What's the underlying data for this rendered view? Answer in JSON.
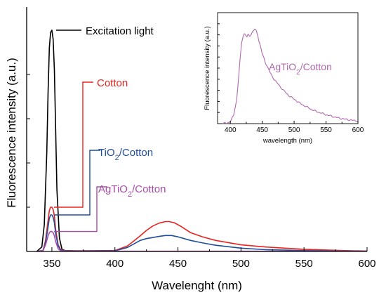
{
  "chart_data": [
    {
      "type": "line",
      "xlabel": "Wavelenght (nm)",
      "ylabel": "Fluorescence intensity (a.u.)",
      "xlim": [
        330,
        600
      ],
      "ylim": [
        0,
        1.0
      ],
      "xticks": [
        350,
        400,
        450,
        500,
        550,
        600
      ],
      "x_tick_labels": [
        "350",
        "400",
        "450",
        "500",
        "550",
        "600"
      ],
      "yticks": [
        0.2,
        0.4,
        0.6,
        0.8
      ],
      "y_tick_labels_visible": false,
      "series": [
        {
          "name": "Excitation light",
          "color": "#000000",
          "x": [
            338,
            342,
            344,
            346,
            347,
            348,
            349,
            350,
            351,
            352,
            353,
            354,
            356,
            358,
            362
          ],
          "y": [
            0.0,
            0.02,
            0.12,
            0.45,
            0.72,
            0.92,
            0.99,
            1.0,
            0.96,
            0.82,
            0.55,
            0.28,
            0.06,
            0.01,
            0.0
          ]
        },
        {
          "name": "Cotton",
          "color": "#e8231e",
          "x": [
            338,
            343,
            345,
            347,
            348,
            349,
            350,
            351,
            352,
            353,
            355,
            357,
            360,
            370,
            400,
            410,
            420,
            425,
            430,
            435,
            440,
            443,
            447,
            452,
            460,
            470,
            480,
            500,
            520,
            550,
            580,
            600
          ],
          "y": [
            0.0,
            0.005,
            0.05,
            0.14,
            0.185,
            0.2,
            0.2,
            0.19,
            0.16,
            0.1,
            0.03,
            0.008,
            0.004,
            0.003,
            0.004,
            0.025,
            0.07,
            0.095,
            0.115,
            0.128,
            0.135,
            0.135,
            0.13,
            0.115,
            0.085,
            0.065,
            0.05,
            0.03,
            0.02,
            0.01,
            0.004,
            0.002
          ]
        },
        {
          "name": "TiO2/Cotton",
          "display_name": [
            "TiO",
            "2",
            "/Cotton"
          ],
          "color": "#1f4e9c",
          "x": [
            338,
            343,
            345,
            347,
            348,
            349,
            350,
            351,
            352,
            353,
            355,
            357,
            360,
            370,
            400,
            410,
            420,
            425,
            430,
            435,
            440,
            445,
            450,
            460,
            470,
            480,
            500,
            520,
            550,
            580,
            600
          ],
          "y": [
            0.0,
            0.005,
            0.04,
            0.11,
            0.15,
            0.165,
            0.165,
            0.155,
            0.13,
            0.08,
            0.025,
            0.006,
            0.003,
            0.002,
            0.003,
            0.018,
            0.05,
            0.058,
            0.063,
            0.068,
            0.072,
            0.072,
            0.066,
            0.05,
            0.038,
            0.028,
            0.015,
            0.008,
            0.004,
            0.002,
            0.001
          ]
        },
        {
          "name": "AgTiO2/Cotton",
          "display_name": [
            "AgTiO",
            "2",
            "/Cotton"
          ],
          "color": "#a64ca6",
          "x": [
            338,
            343,
            345,
            347,
            348,
            349,
            350,
            351,
            352,
            353,
            355,
            357,
            360,
            380,
            600
          ],
          "y": [
            0.0,
            0.004,
            0.03,
            0.07,
            0.085,
            0.09,
            0.09,
            0.085,
            0.07,
            0.045,
            0.012,
            0.003,
            0.001,
            0.001,
            0.001
          ]
        }
      ]
    },
    {
      "type": "line",
      "inset": true,
      "xlabel": "wavelength (nm)",
      "ylabel": "Fluorescence intensity (a.u.)",
      "xlim": [
        380,
        600
      ],
      "ylim": [
        0,
        1.0
      ],
      "xticks": [
        400,
        450,
        500,
        550,
        600
      ],
      "x_tick_labels": [
        "400",
        "450",
        "500",
        "550",
        "600"
      ],
      "yticks": [
        0.1,
        0.2,
        0.3,
        0.4,
        0.5,
        0.6,
        0.7,
        0.8,
        0.9
      ],
      "y_tick_labels_visible": false,
      "series": [
        {
          "name": "AgTiO2/Cotton",
          "display_name": [
            "AgTiO",
            "2",
            "/Cotton"
          ],
          "color": "#b069b0",
          "x": [
            388,
            395,
            400,
            405,
            410,
            413,
            416,
            418,
            420,
            422,
            424,
            426,
            428,
            430,
            432,
            435,
            438,
            440,
            443,
            445,
            448,
            450,
            455,
            460,
            465,
            470,
            480,
            490,
            500,
            510,
            520,
            530,
            540,
            550,
            560,
            570,
            580,
            590,
            600
          ],
          "y": [
            0.0,
            0.005,
            0.02,
            0.07,
            0.22,
            0.42,
            0.62,
            0.74,
            0.79,
            0.81,
            0.8,
            0.78,
            0.8,
            0.79,
            0.8,
            0.83,
            0.85,
            0.84,
            0.8,
            0.74,
            0.68,
            0.63,
            0.55,
            0.49,
            0.43,
            0.39,
            0.32,
            0.26,
            0.22,
            0.18,
            0.15,
            0.12,
            0.1,
            0.08,
            0.065,
            0.05,
            0.04,
            0.03,
            0.025
          ]
        }
      ]
    }
  ]
}
